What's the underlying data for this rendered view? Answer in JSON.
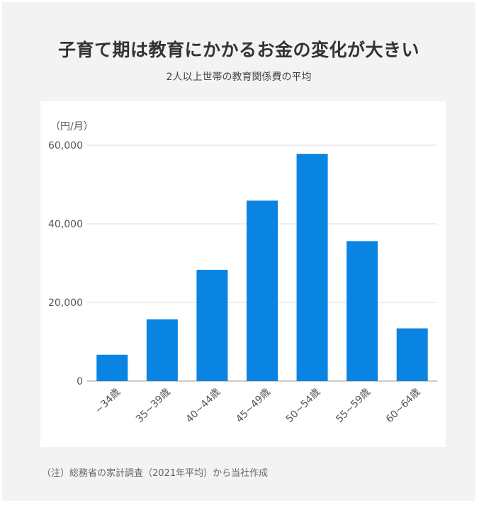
{
  "title": "子育て期は教育にかかるお金の変化が大きい",
  "subtitle": "2人以上世帯の教育関係費の平均",
  "note": "（注）総務省の家計調査（2021年平均）から当社作成",
  "colors": {
    "bar": "#0a84e3",
    "grid": "#dddddd",
    "axis": "#bbbbbb",
    "background": "#f3f3f3"
  },
  "chart_data": {
    "type": "bar",
    "unit_label": "（円/月）",
    "categories": [
      "~34歳",
      "35~39歳",
      "40~44歳",
      "45~49歳",
      "50~54歳",
      "55~59歳",
      "60~64歳"
    ],
    "values": [
      6700,
      15700,
      28300,
      45900,
      57800,
      35600,
      13400
    ],
    "ylim": [
      0,
      60000
    ],
    "yticks": [
      0,
      20000,
      40000,
      60000
    ],
    "ytick_labels": [
      "0",
      "20,000",
      "40,000",
      "60,000"
    ],
    "grid": true,
    "legend": "none"
  }
}
